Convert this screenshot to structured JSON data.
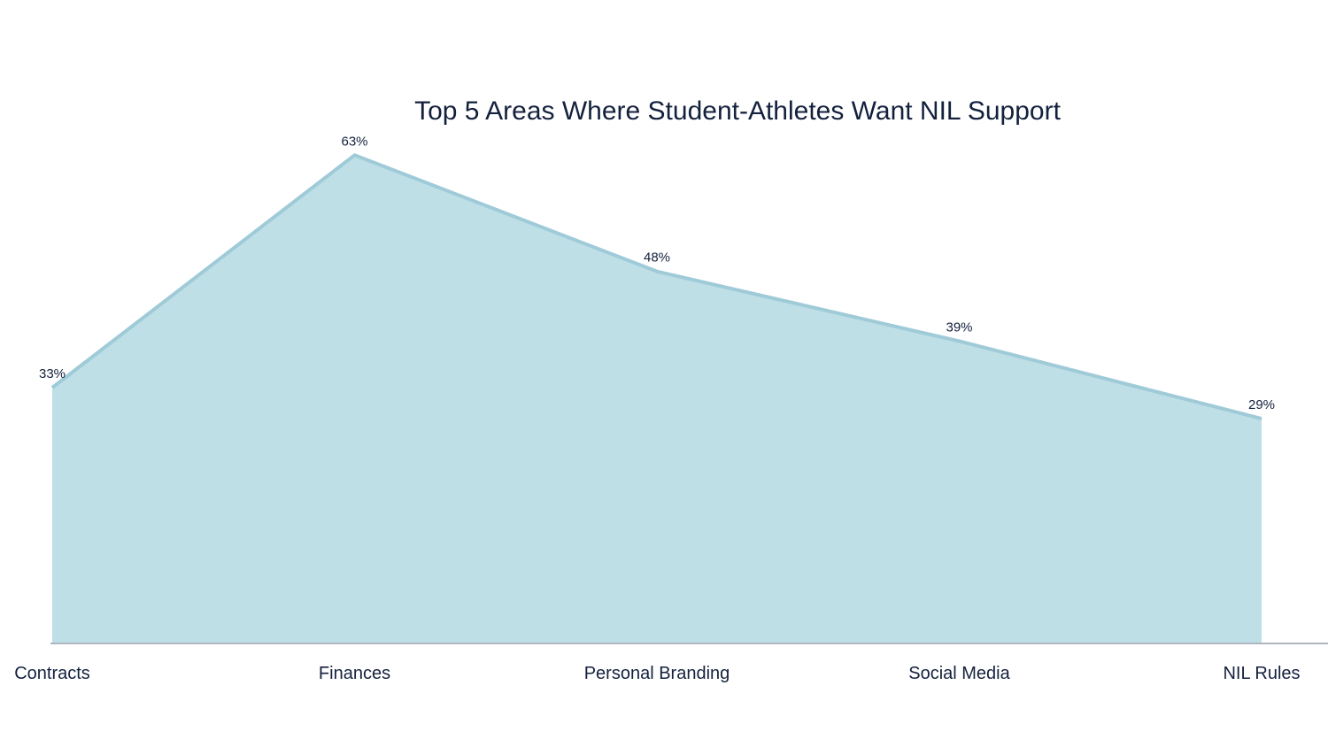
{
  "chart_data": {
    "type": "area",
    "title": "Top 5 Areas Where Student-Athletes Want NIL Support",
    "categories": [
      "Contracts",
      "Finances",
      "Personal Branding",
      "Social Media",
      "NIL Rules"
    ],
    "values": [
      33,
      63,
      48,
      39,
      29
    ],
    "data_labels": [
      "33%",
      "63%",
      "48%",
      "39%",
      "29%"
    ],
    "xlabel": "",
    "ylabel": "",
    "ylim": [
      0,
      70
    ],
    "grid": false,
    "legend": "none",
    "colors": {
      "fill": "#bfdfe7",
      "line": "#9fcad8",
      "axis": "#aeb6c2",
      "text": "#14213d"
    }
  }
}
